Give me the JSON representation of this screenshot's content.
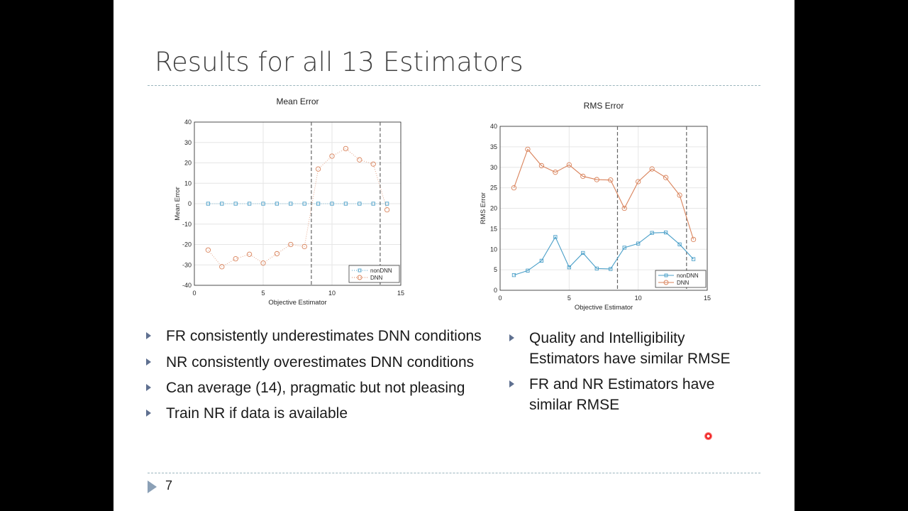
{
  "slide": {
    "title": "Results for all 13 Estimators",
    "page_number": "7",
    "bullets_left": [
      "FR consistently underestimates DNN conditions",
      "NR consistently overestimates DNN conditions",
      "Can average (14), pragmatic but not pleasing",
      "Train NR if data is available"
    ],
    "bullets_right": [
      [
        "Quality and Intelligibility",
        "Estimators have similar RMSE"
      ],
      [
        "FR and NR Estimators have",
        "similar RMSE"
      ]
    ]
  },
  "colors": {
    "nonDNN": "#4a9fc8",
    "DNN": "#d9825a",
    "bullet": "#5f7090",
    "rule": "#9bb5bd"
  },
  "chart_data": [
    {
      "type": "line",
      "title": "Mean Error",
      "xlabel": "Objective Estimator",
      "ylabel": "Mean Error",
      "xlim": [
        0,
        15
      ],
      "ylim": [
        -40,
        40
      ],
      "xticks": [
        0,
        5,
        10,
        15
      ],
      "yticks": [
        -40,
        -30,
        -20,
        -10,
        0,
        10,
        20,
        30,
        40
      ],
      "grid": true,
      "line_style": "dotted",
      "vlines": [
        8.5,
        13.5
      ],
      "legend": "bottom-right",
      "x": [
        1,
        2,
        3,
        4,
        5,
        6,
        7,
        8,
        9,
        10,
        11,
        12,
        13,
        14
      ],
      "series": [
        {
          "name": "nonDNN",
          "marker": "square",
          "values": [
            0,
            0,
            0,
            0,
            0,
            0,
            0,
            0,
            0,
            0,
            0,
            0,
            0,
            0
          ]
        },
        {
          "name": "DNN",
          "marker": "circle",
          "values": [
            -22.7,
            -30.9,
            -27,
            -24.8,
            -29.1,
            -24.5,
            -20,
            -21,
            17,
            23.3,
            27,
            21.5,
            19.4,
            -3
          ]
        }
      ]
    },
    {
      "type": "line",
      "title": "RMS Error",
      "xlabel": "Objective Estimator",
      "ylabel": "RMS Error",
      "xlim": [
        0,
        15
      ],
      "ylim": [
        0,
        40
      ],
      "xticks": [
        0,
        5,
        10,
        15
      ],
      "yticks": [
        0,
        5,
        10,
        15,
        20,
        25,
        30,
        35,
        40
      ],
      "grid": true,
      "line_style": "solid",
      "vlines": [
        8.5,
        13.5
      ],
      "legend": "bottom-right",
      "x": [
        1,
        2,
        3,
        4,
        5,
        6,
        7,
        8,
        9,
        10,
        11,
        12,
        13,
        14
      ],
      "series": [
        {
          "name": "nonDNN",
          "marker": "square",
          "values": [
            3.7,
            4.8,
            7.2,
            13,
            5.6,
            9.1,
            5.3,
            5.2,
            10.4,
            11.4,
            14,
            14.1,
            11.2,
            7.6
          ]
        },
        {
          "name": "DNN",
          "marker": "circle",
          "values": [
            25,
            34.4,
            30.4,
            28.8,
            30.6,
            27.8,
            27,
            26.9,
            20,
            26.5,
            29.6,
            27.5,
            23.2,
            12.4
          ]
        }
      ]
    }
  ]
}
